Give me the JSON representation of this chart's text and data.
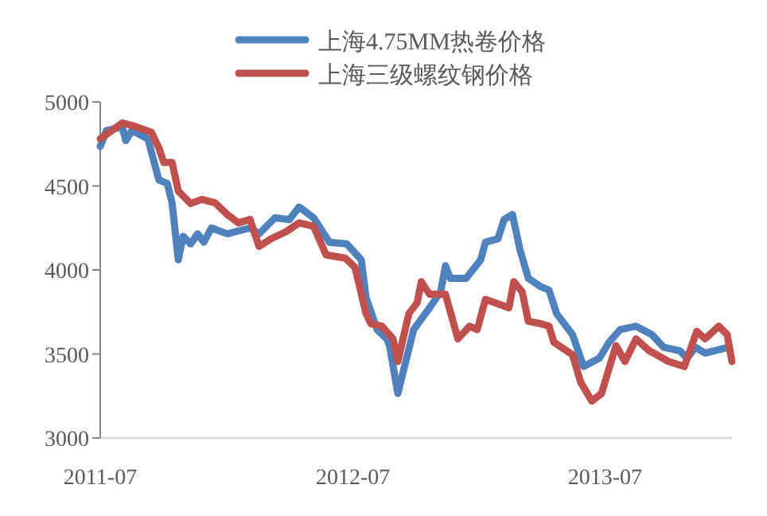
{
  "chart_data": {
    "type": "line",
    "legend": "top",
    "line_style": "solid",
    "grid": false,
    "xlim": [
      "2011-07-01",
      "2014-01-01"
    ],
    "xticks": [
      "2011-07",
      "2012-07",
      "2013-07"
    ],
    "ylim": [
      3000,
      5000
    ],
    "yticks": [
      3000,
      3500,
      4000,
      4500,
      5000
    ],
    "series": [
      {
        "name": "上海4.75MM热卷价格",
        "color": "#4f81bd",
        "x": [
          "2011-07-01",
          "2011-07-10",
          "2011-08-02",
          "2011-08-07",
          "2011-08-16",
          "2011-09-08",
          "2011-09-24",
          "2011-10-06",
          "2011-10-13",
          "2011-10-22",
          "2011-10-29",
          "2011-11-09",
          "2011-11-19",
          "2011-11-28",
          "2011-12-09",
          "2012-01-01",
          "2012-02-03",
          "2012-02-16",
          "2012-03-10",
          "2012-03-31",
          "2012-04-14",
          "2012-05-05",
          "2012-05-28",
          "2012-06-22",
          "2012-07-13",
          "2012-07-20",
          "2012-08-05",
          "2012-08-19",
          "2012-08-23",
          "2012-09-04",
          "2012-09-27",
          "2012-10-20",
          "2012-11-05",
          "2012-11-12",
          "2012-11-19",
          "2012-12-12",
          "2013-01-02",
          "2013-01-09",
          "2013-01-27",
          "2013-02-05",
          "2013-02-17",
          "2013-02-28",
          "2013-03-12",
          "2013-03-30",
          "2013-04-11",
          "2013-04-22",
          "2013-05-15",
          "2013-05-31",
          "2013-06-23",
          "2013-07-07",
          "2013-07-23",
          "2013-08-15",
          "2013-09-07",
          "2013-09-24",
          "2013-10-17",
          "2013-10-28",
          "2013-11-09",
          "2013-11-23",
          "2013-12-27"
        ],
        "values": [
          4735,
          4830,
          4850,
          4770,
          4830,
          4780,
          4535,
          4515,
          4400,
          4060,
          4200,
          4155,
          4215,
          4165,
          4250,
          4215,
          4250,
          4215,
          4310,
          4300,
          4375,
          4310,
          4165,
          4155,
          4060,
          3835,
          3645,
          3590,
          3550,
          3265,
          3645,
          3775,
          3870,
          4025,
          3950,
          3950,
          4060,
          4165,
          4185,
          4300,
          4330,
          4120,
          3950,
          3900,
          3880,
          3740,
          3615,
          3425,
          3475,
          3570,
          3645,
          3665,
          3615,
          3540,
          3520,
          3475,
          3540,
          3505,
          3540
        ]
      },
      {
        "name": "上海三级螺纹钢价格",
        "color": "#c0504d",
        "x": [
          "2011-07-01",
          "2011-08-02",
          "2011-08-16",
          "2011-09-13",
          "2011-09-24",
          "2011-10-01",
          "2011-10-13",
          "2011-10-22",
          "2011-11-09",
          "2011-11-25",
          "2011-12-14",
          "2012-01-01",
          "2012-01-17",
          "2012-02-03",
          "2012-02-16",
          "2012-03-04",
          "2012-03-27",
          "2012-04-14",
          "2012-05-05",
          "2012-05-23",
          "2012-06-20",
          "2012-07-04",
          "2012-07-20",
          "2012-07-27",
          "2012-08-12",
          "2012-08-28",
          "2012-09-04",
          "2012-09-20",
          "2012-10-02",
          "2012-10-08",
          "2012-10-20",
          "2012-11-12",
          "2012-11-30",
          "2012-12-17",
          "2012-12-28",
          "2013-01-09",
          "2013-02-12",
          "2013-02-19",
          "2013-03-03",
          "2013-03-12",
          "2013-03-30",
          "2013-04-11",
          "2013-04-18",
          "2013-05-15",
          "2013-05-27",
          "2013-06-12",
          "2013-06-26",
          "2013-07-17",
          "2013-07-30",
          "2013-08-15",
          "2013-09-03",
          "2013-10-01",
          "2013-10-24",
          "2013-11-11",
          "2013-11-23",
          "2013-12-13",
          "2013-12-25",
          "2014-01-01"
        ],
        "values": [
          4780,
          4875,
          4860,
          4820,
          4725,
          4640,
          4640,
          4470,
          4395,
          4420,
          4400,
          4330,
          4280,
          4300,
          4140,
          4185,
          4230,
          4280,
          4260,
          4090,
          4070,
          4015,
          3740,
          3680,
          3665,
          3590,
          3455,
          3740,
          3805,
          3930,
          3855,
          3855,
          3590,
          3665,
          3645,
          3825,
          3775,
          3930,
          3870,
          3695,
          3680,
          3665,
          3570,
          3495,
          3330,
          3220,
          3265,
          3550,
          3455,
          3590,
          3520,
          3455,
          3425,
          3635,
          3590,
          3665,
          3615,
          3455
        ]
      }
    ]
  }
}
